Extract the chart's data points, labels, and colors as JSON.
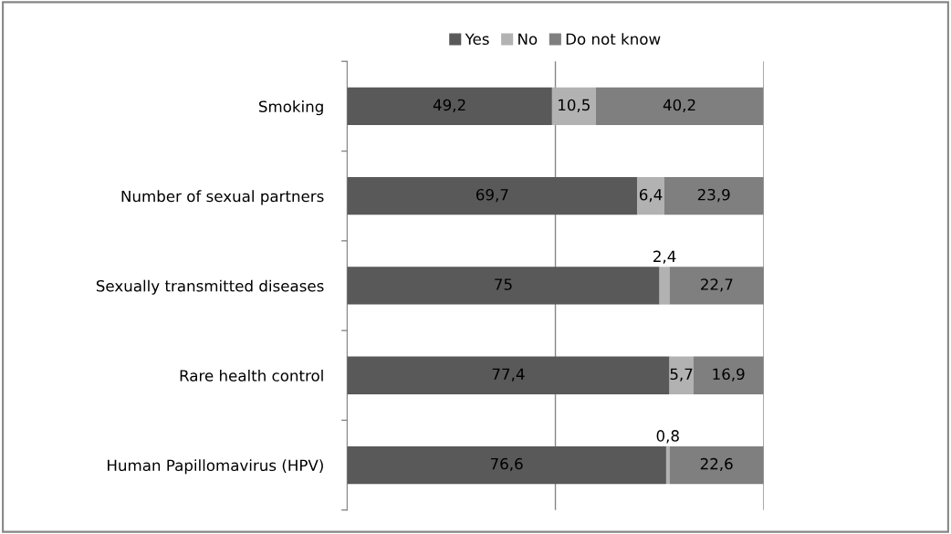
{
  "chart_data": {
    "type": "bar",
    "orientation": "horizontal",
    "stacked": true,
    "categories": [
      "Smoking",
      "Number of sexual partners",
      "Sexually transmitted diseases",
      "Rare health control",
      "Human Papillomavirus (HPV)"
    ],
    "series": [
      {
        "name": "Yes",
        "color": "#595959",
        "values": [
          49.2,
          69.7,
          75,
          77.4,
          76.6
        ],
        "value_labels": [
          "49,2",
          "69,7",
          "75",
          "77,4",
          "76,6"
        ]
      },
      {
        "name": "No",
        "color": "#b2b2b2",
        "values": [
          10.5,
          6.4,
          2.4,
          5.7,
          0.8
        ],
        "value_labels": [
          "10,5",
          "6,4",
          "2,4",
          "5,7",
          "0,8"
        ]
      },
      {
        "name": "Do not know",
        "color": "#7f7f7f",
        "values": [
          40.2,
          23.9,
          22.7,
          16.9,
          22.6
        ],
        "value_labels": [
          "40,2",
          "23,9",
          "22,7",
          "16,9",
          "22,6"
        ]
      }
    ],
    "xlim": [
      0,
      100
    ],
    "xticks": [
      {
        "value": 0,
        "label": null
      },
      {
        "value": 50,
        "label": null
      },
      {
        "value": 100,
        "label": null
      }
    ],
    "tick_labels": "y",
    "grid": "x",
    "legend": "top"
  }
}
